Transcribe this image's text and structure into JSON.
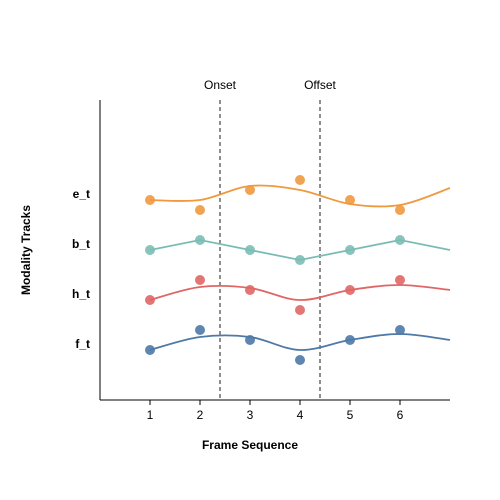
{
  "chart_data": {
    "type": "scatter",
    "xlabel": "Frame Sequence",
    "ylabel": "Modality Tracks",
    "xlim": [
      0,
      7
    ],
    "xticks": [
      1,
      2,
      3,
      4,
      5,
      6
    ],
    "ylim": [
      0,
      6
    ],
    "yticks": [
      {
        "value": 4.1,
        "label": "e_t"
      },
      {
        "value": 3.1,
        "label": "b_t"
      },
      {
        "value": 2.1,
        "label": "h_t"
      },
      {
        "value": 1.1,
        "label": "f_t"
      }
    ],
    "x": [
      1,
      2,
      3,
      4,
      5,
      6
    ],
    "series": [
      {
        "color": "#f0993f",
        "values": [
          4.0,
          3.8,
          4.2,
          4.4,
          4.0,
          3.8
        ]
      },
      {
        "color": "#7bbcb5",
        "values": [
          3.0,
          3.2,
          3.0,
          2.8,
          3.0,
          3.2
        ]
      },
      {
        "color": "#e06666",
        "values": [
          2.0,
          2.4,
          2.2,
          1.8,
          2.2,
          2.4
        ]
      },
      {
        "color": "#4e79a7",
        "values": [
          1.0,
          1.4,
          1.2,
          0.8,
          1.2,
          1.4
        ]
      }
    ],
    "fit_x": [
      1,
      2,
      3,
      4,
      5,
      6,
      7
    ],
    "fits": [
      {
        "color": "#f0993f",
        "smooth": true,
        "values": [
          4.0,
          4.0,
          4.28,
          4.2,
          3.92,
          3.9,
          4.24
        ]
      },
      {
        "color": "#7bbcb5",
        "smooth": false,
        "values": [
          3.0,
          3.2,
          3.0,
          2.8,
          3.0,
          3.2,
          3.0
        ]
      },
      {
        "color": "#e06666",
        "smooth": true,
        "values": [
          2.0,
          2.26,
          2.24,
          2.0,
          2.2,
          2.3,
          2.2
        ]
      },
      {
        "color": "#4e79a7",
        "smooth": true,
        "values": [
          1.0,
          1.26,
          1.26,
          1.0,
          1.2,
          1.32,
          1.2
        ]
      }
    ],
    "markers": [
      {
        "label": "Onset",
        "x": 2.4
      },
      {
        "label": "Offset",
        "x": 4.4
      }
    ]
  }
}
